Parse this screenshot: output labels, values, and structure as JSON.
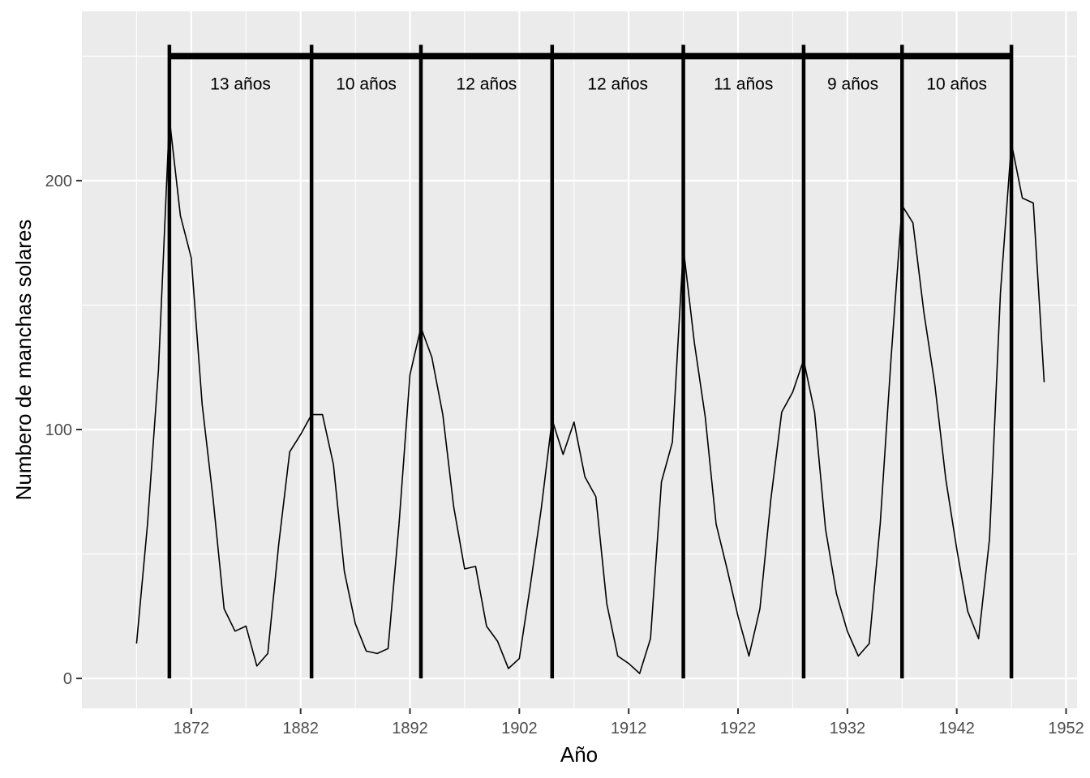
{
  "chart_data": {
    "type": "line",
    "title": "",
    "xlabel": "Año",
    "ylabel": "Numbero de manchas solares",
    "xlim": [
      1862,
      1953
    ],
    "ylim": [
      -12,
      268
    ],
    "x_ticks": [
      1872,
      1882,
      1892,
      1902,
      1912,
      1922,
      1932,
      1942,
      1952
    ],
    "y_ticks": [
      0,
      100,
      200
    ],
    "grid": true,
    "legend": "none",
    "colors": {
      "panel": "#ebebeb",
      "grid_major": "#ffffff",
      "line": "#000000",
      "tick_text": "#4d4d4d"
    },
    "series": [
      {
        "x": [
          1867,
          1868,
          1869,
          1870,
          1871,
          1872,
          1873,
          1874,
          1875,
          1876,
          1877,
          1878,
          1879,
          1880,
          1881,
          1882,
          1883,
          1884,
          1885,
          1886,
          1887,
          1888,
          1889,
          1890,
          1891,
          1892,
          1893,
          1894,
          1895,
          1896,
          1897,
          1898,
          1899,
          1900,
          1901,
          1902,
          1903,
          1904,
          1905,
          1906,
          1907,
          1908,
          1909,
          1910,
          1911,
          1912,
          1913,
          1914,
          1915,
          1916,
          1917,
          1918,
          1919,
          1920,
          1921,
          1922,
          1923,
          1924,
          1925,
          1926,
          1927,
          1928,
          1929,
          1930,
          1931,
          1932,
          1933,
          1934,
          1935,
          1936,
          1937,
          1938,
          1939,
          1940,
          1941,
          1942,
          1943,
          1944,
          1945,
          1946,
          1947,
          1948,
          1949,
          1950
        ],
        "values": [
          14,
          62,
          124,
          225,
          186,
          169,
          110,
          72,
          28,
          19,
          21,
          5,
          10,
          54,
          91,
          98,
          106,
          106,
          86,
          43,
          22,
          11,
          10,
          12,
          62,
          122,
          141,
          129,
          106,
          69,
          44,
          45,
          21,
          15,
          4,
          8,
          37,
          68,
          104,
          90,
          103,
          81,
          73,
          30,
          9,
          6,
          2,
          16,
          79,
          95,
          173,
          135,
          105,
          62,
          44,
          25,
          9,
          28,
          72,
          107,
          115,
          128,
          107,
          60,
          34,
          19,
          9,
          14,
          62,
          129,
          190,
          183,
          147,
          118,
          80,
          52,
          27,
          16,
          56,
          155,
          215,
          193,
          191,
          119
        ]
      }
    ],
    "cycle_boundaries": [
      1870,
      1883,
      1893,
      1905,
      1917,
      1928,
      1937,
      1947
    ],
    "cycle_labels": [
      "13 años",
      "10 años",
      "12 años",
      "12 años",
      "11 años",
      "9 años",
      "10 años"
    ],
    "bracket_y": 250
  }
}
